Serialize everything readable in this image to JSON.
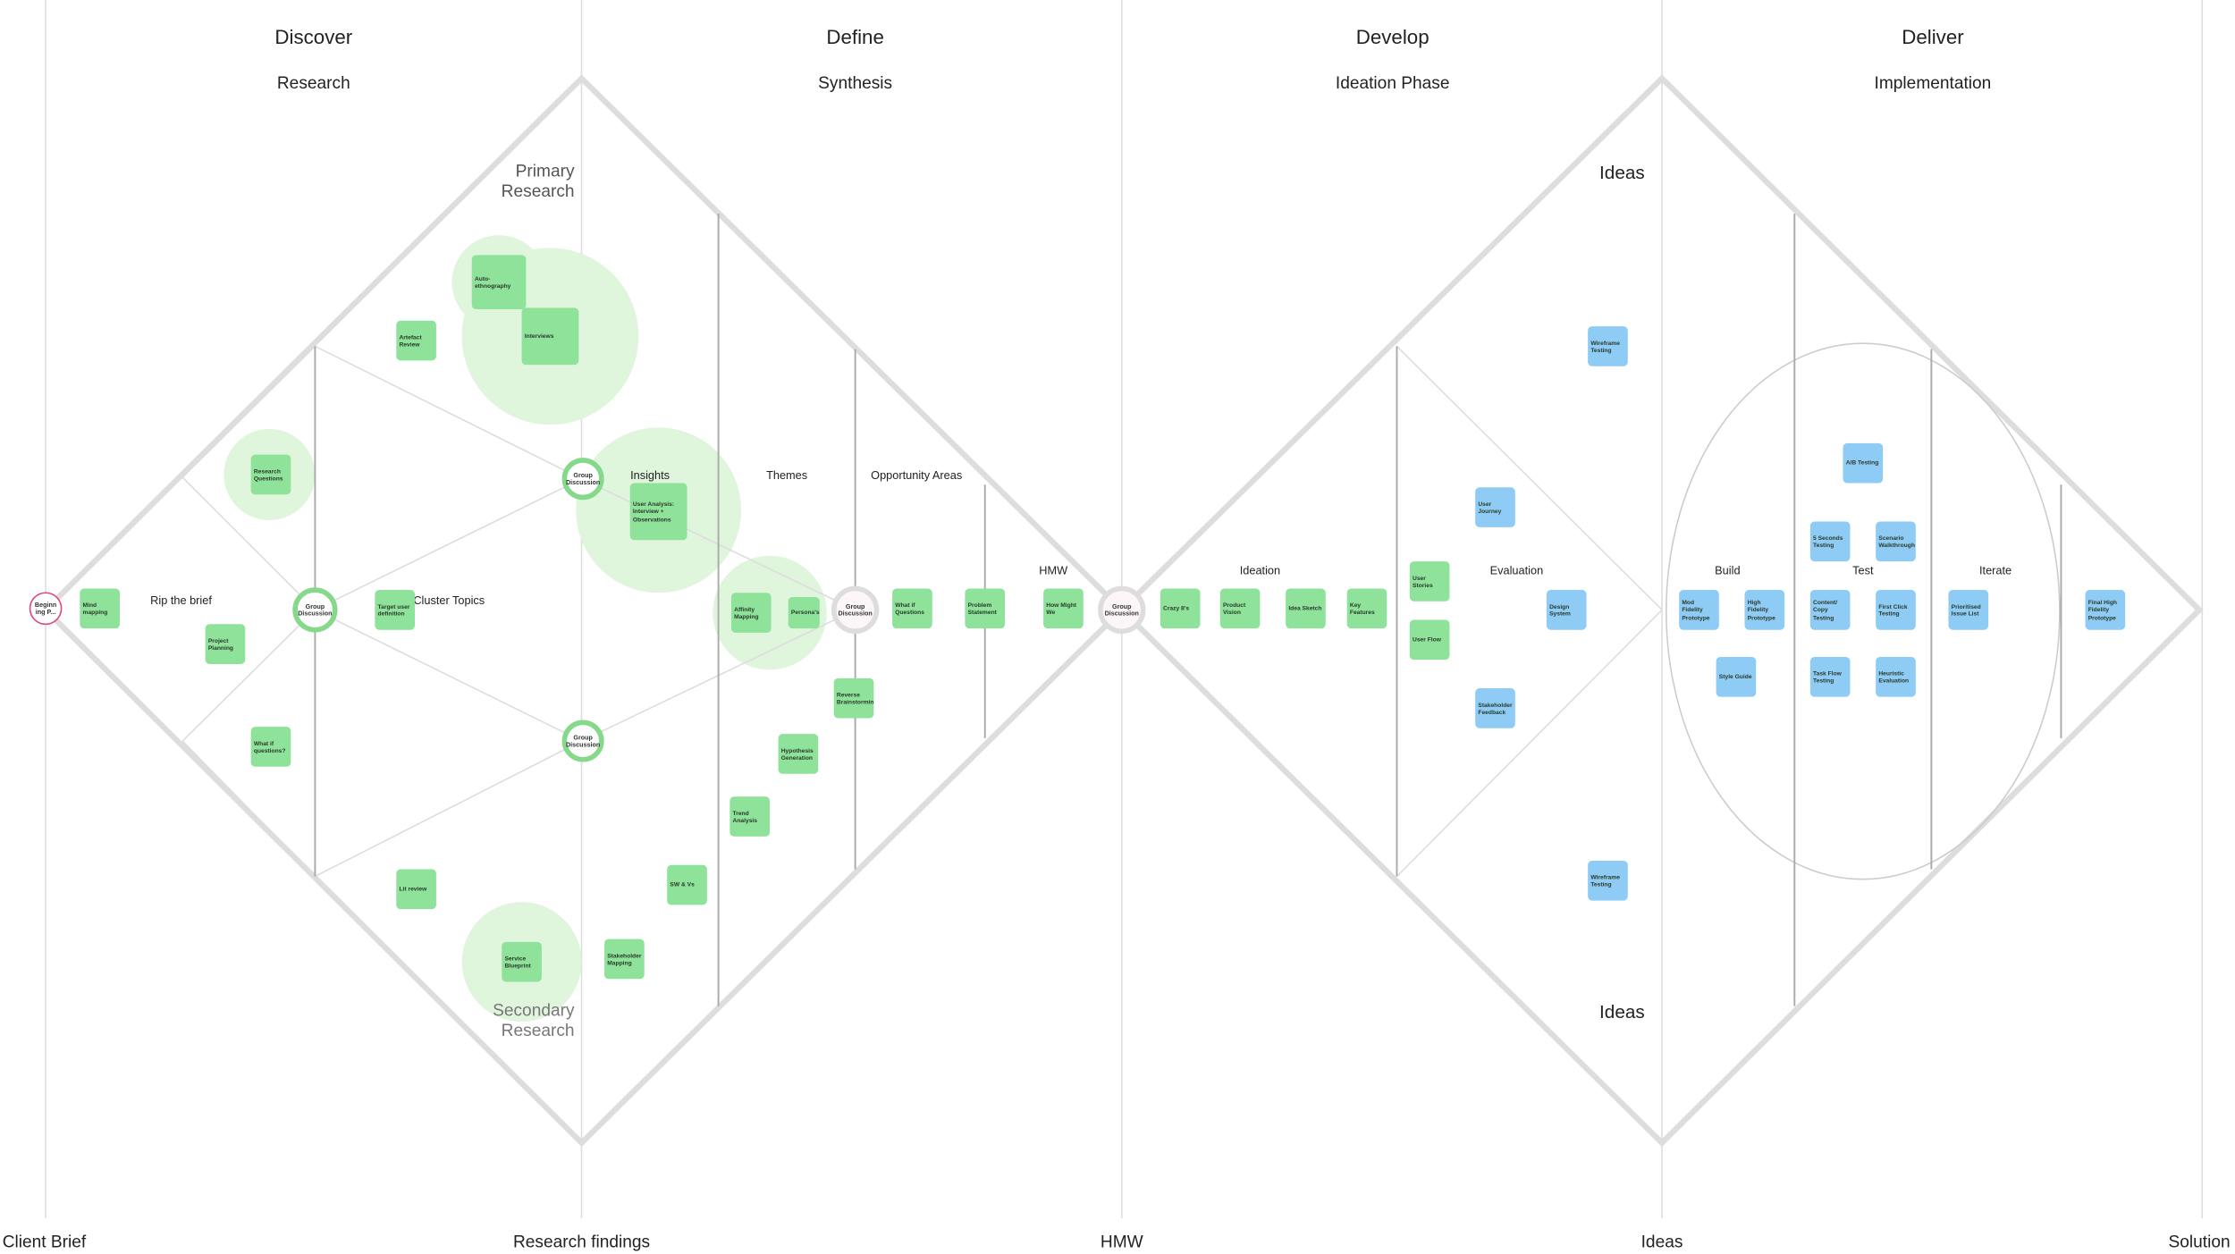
{
  "phases": [
    {
      "title": "Discover",
      "subtitle": "Research"
    },
    {
      "title": "Define",
      "subtitle": "Synthesis"
    },
    {
      "title": "Develop",
      "subtitle": "Ideation Phase"
    },
    {
      "title": "Deliver",
      "subtitle": "Implementation"
    }
  ],
  "milestones": [
    "Client Brief",
    "Research findings",
    "HMW",
    "Ideas",
    "Solution"
  ],
  "labels": [
    "Primary Research",
    "Secondary Research",
    "Ideas",
    "Ideas",
    "Rip the brief",
    "Cluster Topics",
    "Insights",
    "Themes",
    "Opportunity Areas",
    "HMW",
    "Ideation",
    "Evaluation",
    "Build",
    "Test",
    "Iterate"
  ],
  "nodes": [
    "Beginn ing P...",
    "Group Discussion",
    "Group Discussion",
    "Group Discussion",
    "Group Discussion",
    "Group Discussion"
  ],
  "notes_green": [
    "Mind mapping",
    "Project Planning",
    "What if questions?",
    "Research Questions",
    "Artefact Review",
    "Auto-ethnography",
    "Interviews",
    "Target user definition",
    "Lit review",
    "Service Blueprint",
    "User Analysis: Interview + Observations",
    "Affinity Mapping",
    "Persona's",
    "Reverse Brainstorming",
    "Hypothesis Generation",
    "Trend Analysis",
    "SW & Vs",
    "Stakeholder Mapping",
    "What if Questions",
    "Problem Statement",
    "How Might We",
    "Crazy 8's",
    "Product Vision",
    "Idea Sketch",
    "Key Features",
    "User Stories",
    "User Flow"
  ],
  "notes_blue": [
    "Wireframe Testing",
    "User Journey",
    "Design System",
    "Stakeholder Feedback",
    "Wireframe Testing",
    "A/B Testing",
    "5 Seconds Testing",
    "Scenario Walkthrough",
    "Mod Fidelity Prototype",
    "High Fidelity Prototype",
    "Content/ Copy Testing",
    "First Click Testing",
    "Prioritised Issue List",
    "Style Guide",
    "Task Flow Testing",
    "Heuristic Evaluation",
    "Final High Fidelity Prototype"
  ]
}
